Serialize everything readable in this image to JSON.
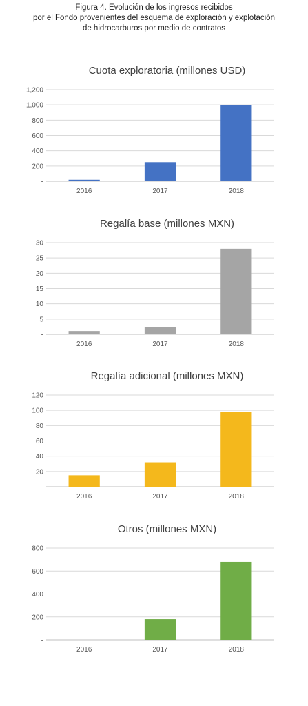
{
  "caption": {
    "line1": "Figura 4. Evolución de los ingresos recibidos",
    "line2": "por el Fondo provenientes del esquema de exploración y explotación",
    "line3": "de hidrocarburos por medio de contratos"
  },
  "chart_data": [
    {
      "type": "bar",
      "title": "Cuota exploratoria (millones USD)",
      "categories": [
        "2016",
        "2017",
        "2018"
      ],
      "values": [
        20,
        250,
        995
      ],
      "ylim": [
        0,
        1200
      ],
      "yticks": [
        "-",
        "200",
        "400",
        "600",
        "800",
        "1,000",
        "1,200"
      ],
      "color": "#4472C4",
      "grid": true
    },
    {
      "type": "bar",
      "title": "Regalía base (millones MXN)",
      "categories": [
        "2016",
        "2017",
        "2018"
      ],
      "values": [
        1.1,
        2.4,
        28
      ],
      "ylim": [
        0,
        30
      ],
      "yticks": [
        "-",
        "5",
        "10",
        "15",
        "20",
        "25",
        "30"
      ],
      "color": "#A5A5A5",
      "grid": true
    },
    {
      "type": "bar",
      "title": "Regalía adicional (millones MXN)",
      "categories": [
        "2016",
        "2017",
        "2018"
      ],
      "values": [
        15,
        32,
        98
      ],
      "ylim": [
        0,
        120
      ],
      "yticks": [
        "-",
        "20",
        "40",
        "60",
        "80",
        "100",
        "120"
      ],
      "color": "#F4B81C",
      "grid": true
    },
    {
      "type": "bar",
      "title": "Otros (millones MXN)",
      "categories": [
        "2016",
        "2017",
        "2018"
      ],
      "values": [
        0,
        180,
        680
      ],
      "ylim": [
        0,
        800
      ],
      "yticks": [
        "-",
        "200",
        "400",
        "600",
        "800"
      ],
      "color": "#70AD47",
      "grid": true
    }
  ]
}
